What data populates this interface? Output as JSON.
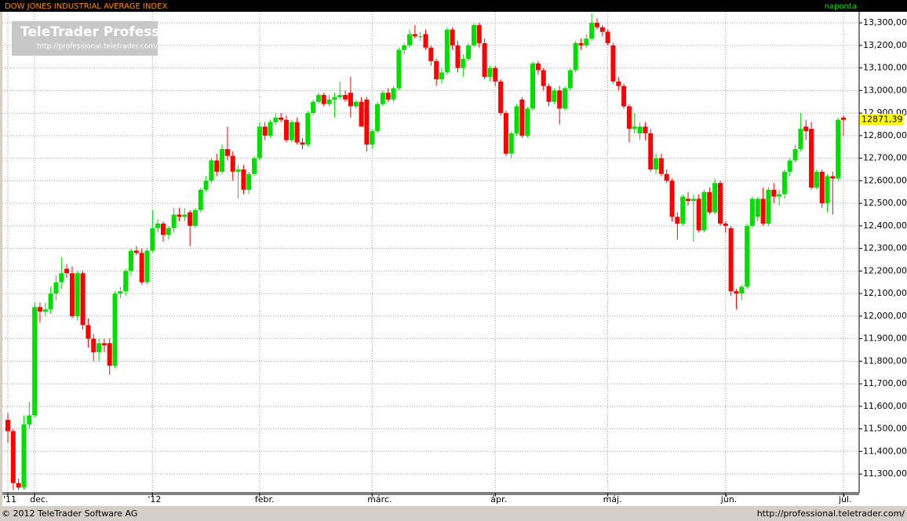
{
  "chart_data": {
    "type": "candlestick",
    "title": "DOW JONES INDUSTRIAL AVERAGE INDEX",
    "period": "naponta",
    "logo": {
      "title": "TeleTrader Professional",
      "url": "http://professional.teletrader.com/"
    },
    "footer": {
      "copyright": "© 2012 TeleTrader Software AG",
      "url": "http://professional.teletrader.com/"
    },
    "up_color": "#00e000",
    "down_color": "#ff0000",
    "last_value": {
      "value": 12871.39,
      "label": "12871,39"
    },
    "ylim": [
      11217,
      13349
    ],
    "yticks": [
      {
        "value": 11300,
        "label": "11,300,00"
      },
      {
        "value": 11400,
        "label": "11,400,00"
      },
      {
        "value": 11500,
        "label": "11,500,00"
      },
      {
        "value": 11600,
        "label": "11,600,00"
      },
      {
        "value": 11700,
        "label": "11,700,00"
      },
      {
        "value": 11800,
        "label": "11,800,00"
      },
      {
        "value": 11900,
        "label": "11,900,00"
      },
      {
        "value": 12000,
        "label": "12,000,00"
      },
      {
        "value": 12100,
        "label": "12,100,00"
      },
      {
        "value": 12200,
        "label": "12,200,00"
      },
      {
        "value": 12300,
        "label": "12,300,00"
      },
      {
        "value": 12400,
        "label": "12,400,00"
      },
      {
        "value": 12500,
        "label": "12,500,00"
      },
      {
        "value": 12600,
        "label": "12,600,00"
      },
      {
        "value": 12700,
        "label": "12,700,00"
      },
      {
        "value": 12800,
        "label": "12,800,00"
      },
      {
        "value": 12900,
        "label": "12,900,00"
      },
      {
        "value": 13000,
        "label": "13,000,00"
      },
      {
        "value": 13100,
        "label": "13,100,00"
      },
      {
        "value": 13200,
        "label": "13,200,00"
      },
      {
        "value": 13300,
        "label": "13,300,00"
      }
    ],
    "grid": true,
    "categories": [
      "'11",
      null,
      null,
      null,
      null,
      "dec.",
      null,
      null,
      null,
      null,
      null,
      null,
      null,
      null,
      null,
      null,
      null,
      null,
      null,
      null,
      null,
      null,
      null,
      null,
      null,
      null,
      null,
      "'12",
      null,
      null,
      null,
      null,
      null,
      null,
      null,
      null,
      null,
      null,
      null,
      null,
      null,
      null,
      null,
      null,
      null,
      null,
      null,
      "febr.",
      null,
      null,
      null,
      null,
      null,
      null,
      null,
      null,
      null,
      null,
      null,
      null,
      null,
      null,
      null,
      null,
      null,
      null,
      null,
      null,
      "márc.",
      null,
      null,
      null,
      null,
      null,
      null,
      null,
      null,
      null,
      null,
      null,
      null,
      null,
      null,
      null,
      null,
      null,
      null,
      null,
      null,
      null,
      null,
      "ápr.",
      null,
      null,
      null,
      null,
      null,
      null,
      null,
      null,
      null,
      null,
      null,
      null,
      null,
      null,
      null,
      null,
      null,
      null,
      null,
      null,
      "máj.",
      null,
      null,
      null,
      null,
      null,
      null,
      null,
      null,
      null,
      null,
      null,
      null,
      null,
      null,
      null,
      null,
      null,
      null,
      null,
      null,
      null,
      "jún.",
      null,
      null,
      null,
      null,
      null,
      null,
      null,
      null,
      null,
      null,
      null,
      null,
      null,
      null,
      null,
      null,
      null,
      null,
      null,
      null,
      null,
      "júl."
    ],
    "candles": [
      [
        11540,
        11570,
        11440,
        11490
      ],
      [
        11490,
        11500,
        11230,
        11260
      ],
      [
        11260,
        11280,
        11230,
        11240
      ],
      [
        11240,
        11560,
        11230,
        11520
      ],
      [
        11520,
        11620,
        11500,
        11560
      ],
      [
        11560,
        12060,
        11550,
        12040
      ],
      [
        12040,
        12060,
        11970,
        12020
      ],
      [
        12020,
        12060,
        12000,
        12030
      ],
      [
        12030,
        12130,
        12010,
        12100
      ],
      [
        12100,
        12180,
        12070,
        12150
      ],
      [
        12150,
        12260,
        12120,
        12190
      ],
      [
        12210,
        12230,
        12170,
        12190
      ],
      [
        12190,
        12220,
        11990,
        12000
      ],
      [
        12000,
        12200,
        11980,
        12190
      ],
      [
        12190,
        12200,
        11940,
        11960
      ],
      [
        11960,
        11990,
        11860,
        11900
      ],
      [
        11900,
        11920,
        11800,
        11840
      ],
      [
        11840,
        11900,
        11800,
        11880
      ],
      [
        11880,
        11900,
        11840,
        11870
      ],
      [
        11880,
        11900,
        11740,
        11780
      ],
      [
        11780,
        12110,
        11770,
        12100
      ],
      [
        12100,
        12130,
        12080,
        12110
      ],
      [
        12110,
        12210,
        12090,
        12200
      ],
      [
        12200,
        12300,
        12180,
        12290
      ],
      [
        12290,
        12310,
        12270,
        12280
      ],
      [
        12280,
        12300,
        12140,
        12150
      ],
      [
        12150,
        12300,
        12140,
        12290
      ],
      [
        12290,
        12470,
        12280,
        12390
      ],
      [
        12390,
        12430,
        12370,
        12410
      ],
      [
        12410,
        12420,
        12330,
        12360
      ],
      [
        12360,
        12400,
        12340,
        12390
      ],
      [
        12390,
        12480,
        12370,
        12450
      ],
      [
        12450,
        12480,
        12420,
        12440
      ],
      [
        12440,
        12480,
        12420,
        12450
      ],
      [
        12460,
        12470,
        12310,
        12400
      ],
      [
        12400,
        12480,
        12390,
        12470
      ],
      [
        12470,
        12570,
        12460,
        12560
      ],
      [
        12560,
        12620,
        12550,
        12600
      ],
      [
        12600,
        12700,
        12590,
        12690
      ],
      [
        12690,
        12720,
        12620,
        12640
      ],
      [
        12640,
        12760,
        12630,
        12740
      ],
      [
        12740,
        12840,
        12690,
        12710
      ],
      [
        12710,
        12730,
        12600,
        12640
      ],
      [
        12640,
        12670,
        12520,
        12650
      ],
      [
        12650,
        12670,
        12540,
        12560
      ],
      [
        12560,
        12640,
        12540,
        12630
      ],
      [
        12630,
        12710,
        12620,
        12700
      ],
      [
        12700,
        12860,
        12690,
        12840
      ],
      [
        12840,
        12860,
        12780,
        12800
      ],
      [
        12800,
        12870,
        12790,
        12860
      ],
      [
        12860,
        12900,
        12850,
        12880
      ],
      [
        12880,
        12900,
        12860,
        12870
      ],
      [
        12870,
        12890,
        12770,
        12780
      ],
      [
        12780,
        12870,
        12770,
        12860
      ],
      [
        12860,
        12880,
        12760,
        12770
      ],
      [
        12770,
        12790,
        12740,
        12760
      ],
      [
        12760,
        12910,
        12750,
        12900
      ],
      [
        12900,
        12960,
        12890,
        12950
      ],
      [
        12950,
        12990,
        12940,
        12980
      ],
      [
        12980,
        12990,
        12930,
        12940
      ],
      [
        12940,
        12980,
        12930,
        12960
      ],
      [
        12960,
        12990,
        12880,
        12970
      ],
      [
        12970,
        13040,
        12960,
        12980
      ],
      [
        12980,
        13000,
        12950,
        12960
      ],
      [
        12990,
        13060,
        12880,
        12930
      ],
      [
        12930,
        12960,
        12920,
        12950
      ],
      [
        12950,
        12970,
        12840,
        12840
      ],
      [
        12960,
        12970,
        12730,
        12760
      ],
      [
        12760,
        12830,
        12740,
        12820
      ],
      [
        12820,
        12950,
        12810,
        12940
      ],
      [
        12940,
        13000,
        12930,
        12990
      ],
      [
        12990,
        13010,
        12950,
        12960
      ],
      [
        12960,
        13020,
        12950,
        13010
      ],
      [
        13010,
        13190,
        13000,
        13180
      ],
      [
        13180,
        13210,
        13160,
        13200
      ],
      [
        13200,
        13270,
        13190,
        13250
      ],
      [
        13250,
        13290,
        13230,
        13240
      ],
      [
        13240,
        13260,
        13220,
        13240
      ],
      [
        13250,
        13270,
        13180,
        13190
      ],
      [
        13190,
        13200,
        13110,
        13130
      ],
      [
        13130,
        13140,
        13020,
        13050
      ],
      [
        13050,
        13100,
        13030,
        13080
      ],
      [
        13080,
        13280,
        13070,
        13270
      ],
      [
        13270,
        13280,
        13180,
        13200
      ],
      [
        13200,
        13220,
        13080,
        13100
      ],
      [
        13100,
        13160,
        13060,
        13140
      ],
      [
        13140,
        13210,
        13130,
        13200
      ],
      [
        13200,
        13300,
        13190,
        13290
      ],
      [
        13290,
        13300,
        13190,
        13210
      ],
      [
        13210,
        13230,
        13050,
        13060
      ],
      [
        13060,
        13110,
        13040,
        13100
      ],
      [
        13100,
        13110,
        13020,
        13040
      ],
      [
        13040,
        13050,
        12890,
        12900
      ],
      [
        12900,
        12910,
        12710,
        12720
      ],
      [
        12720,
        12820,
        12700,
        12810
      ],
      [
        12810,
        12940,
        12800,
        12930
      ],
      [
        12960,
        12970,
        12790,
        12800
      ],
      [
        12800,
        12930,
        12790,
        12920
      ],
      [
        12920,
        13130,
        12910,
        13120
      ],
      [
        13120,
        13130,
        13070,
        13090
      ],
      [
        13090,
        13100,
        13000,
        13020
      ],
      [
        13020,
        13030,
        12930,
        12950
      ],
      [
        12950,
        13010,
        12940,
        13000
      ],
      [
        13000,
        13020,
        12850,
        12920
      ],
      [
        12920,
        13020,
        12910,
        13010
      ],
      [
        13010,
        13100,
        13000,
        13090
      ],
      [
        13090,
        13220,
        13080,
        13210
      ],
      [
        13210,
        13230,
        13180,
        13200
      ],
      [
        13200,
        13250,
        13190,
        13230
      ],
      [
        13230,
        13340,
        13220,
        13300
      ],
      [
        13300,
        13320,
        13270,
        13280
      ],
      [
        13280,
        13290,
        13240,
        13260
      ],
      [
        13260,
        13270,
        13200,
        13210
      ],
      [
        13200,
        13210,
        13030,
        13040
      ],
      [
        13040,
        13060,
        13000,
        13020
      ],
      [
        13020,
        13030,
        12920,
        12930
      ],
      [
        12930,
        12940,
        12770,
        12830
      ],
      [
        12830,
        12900,
        12810,
        12840
      ],
      [
        12810,
        12860,
        12780,
        12840
      ],
      [
        12840,
        12860,
        12780,
        12810
      ],
      [
        12810,
        12830,
        12640,
        12650
      ],
      [
        12650,
        12720,
        12630,
        12700
      ],
      [
        12700,
        12720,
        12620,
        12630
      ],
      [
        12630,
        12650,
        12590,
        12600
      ],
      [
        12600,
        12610,
        12420,
        12440
      ],
      [
        12440,
        12460,
        12340,
        12410
      ],
      [
        12410,
        12540,
        12400,
        12530
      ],
      [
        12520,
        12550,
        12490,
        12510
      ],
      [
        12510,
        12540,
        12330,
        12520
      ],
      [
        12520,
        12540,
        12370,
        12380
      ],
      [
        12380,
        12560,
        12370,
        12550
      ],
      [
        12550,
        12570,
        12450,
        12460
      ],
      [
        12460,
        12610,
        12450,
        12590
      ],
      [
        12590,
        12600,
        12400,
        12410
      ],
      [
        12410,
        12420,
        12370,
        12400
      ],
      [
        12390,
        12400,
        12090,
        12110
      ],
      [
        12110,
        12120,
        12030,
        12100
      ],
      [
        12100,
        12140,
        12070,
        12130
      ],
      [
        12130,
        12410,
        12120,
        12400
      ],
      [
        12400,
        12530,
        12390,
        12520
      ],
      [
        12440,
        12530,
        12420,
        12520
      ],
      [
        12520,
        12570,
        12400,
        12410
      ],
      [
        12410,
        12570,
        12400,
        12560
      ],
      [
        12560,
        12590,
        12500,
        12530
      ],
      [
        12530,
        12560,
        12490,
        12540
      ],
      [
        12540,
        12650,
        12520,
        12640
      ],
      [
        12640,
        12700,
        12620,
        12690
      ],
      [
        12690,
        12760,
        12680,
        12740
      ],
      [
        12740,
        12900,
        12730,
        12830
      ],
      [
        12840,
        12870,
        12780,
        12820
      ],
      [
        12830,
        12860,
        12560,
        12570
      ],
      [
        12570,
        12650,
        12560,
        12640
      ],
      [
        12640,
        12650,
        12480,
        12500
      ],
      [
        12500,
        12630,
        12460,
        12620
      ],
      [
        12620,
        12640,
        12450,
        12610
      ],
      [
        12610,
        12880,
        12600,
        12870
      ],
      [
        12880,
        12890,
        12800,
        12870
      ]
    ]
  }
}
